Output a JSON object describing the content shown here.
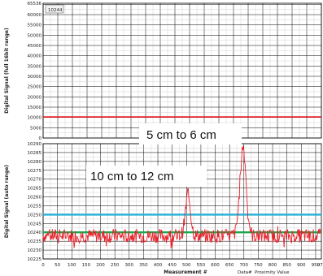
{
  "colors": {
    "trace": "#e8212b",
    "cyan_line": "#2bb2d8",
    "green_line": "#19a84a",
    "top_red_line": "#e8212b",
    "grid_minor": "#c8c8c8",
    "grid_major": "#000000"
  },
  "chart_data": [
    {
      "type": "line",
      "title": "",
      "value_box": "10244",
      "xlabel": "",
      "ylabel": "Digital Signal (full 16bit range)",
      "ylim": [
        0,
        65536
      ],
      "yticks": [
        "0",
        "5000",
        "10000",
        "15000",
        "20000",
        "25000",
        "30000",
        "35000",
        "40000",
        "45000",
        "50000",
        "55000",
        "60000",
        "65536"
      ],
      "series": [
        {
          "values_x": [
            0,
            970
          ],
          "values_y": [
            10244,
            10244
          ]
        }
      ],
      "grid": true
    },
    {
      "type": "line",
      "title": "",
      "xlabel": "Measurement #",
      "ylabel": "Digital Signal (auto range)",
      "xlim": [
        0,
        970
      ],
      "ylim": [
        10225,
        10290
      ],
      "xticks": [
        "0",
        "50",
        "100",
        "150",
        "200",
        "250",
        "300",
        "350",
        "400",
        "450",
        "500",
        "550",
        "600",
        "650",
        "700",
        "750",
        "800",
        "850",
        "900",
        "950",
        "970"
      ],
      "yticks": [
        "10225",
        "10230",
        "10235",
        "10240",
        "10245",
        "10250",
        "10255",
        "10260",
        "10265",
        "10270",
        "10275",
        "10280",
        "10285",
        "10290"
      ],
      "bottom_labels": [
        "Data#",
        "Proximity Value"
      ],
      "threshold_lines": [
        {
          "name": "",
          "value": 10250
        },
        {
          "name": "",
          "value": 10240
        }
      ],
      "annotations": [
        {
          "text": "5 cm to 6 cm"
        },
        {
          "text": "10 cm to 12 cm"
        }
      ],
      "baseline": 10238,
      "noise_amplitude": 4,
      "peaks": [
        {
          "x": 505,
          "height": 10261,
          "width": 18
        },
        {
          "x": 697,
          "height": 10288,
          "width": 22
        }
      ],
      "grid": true
    }
  ]
}
